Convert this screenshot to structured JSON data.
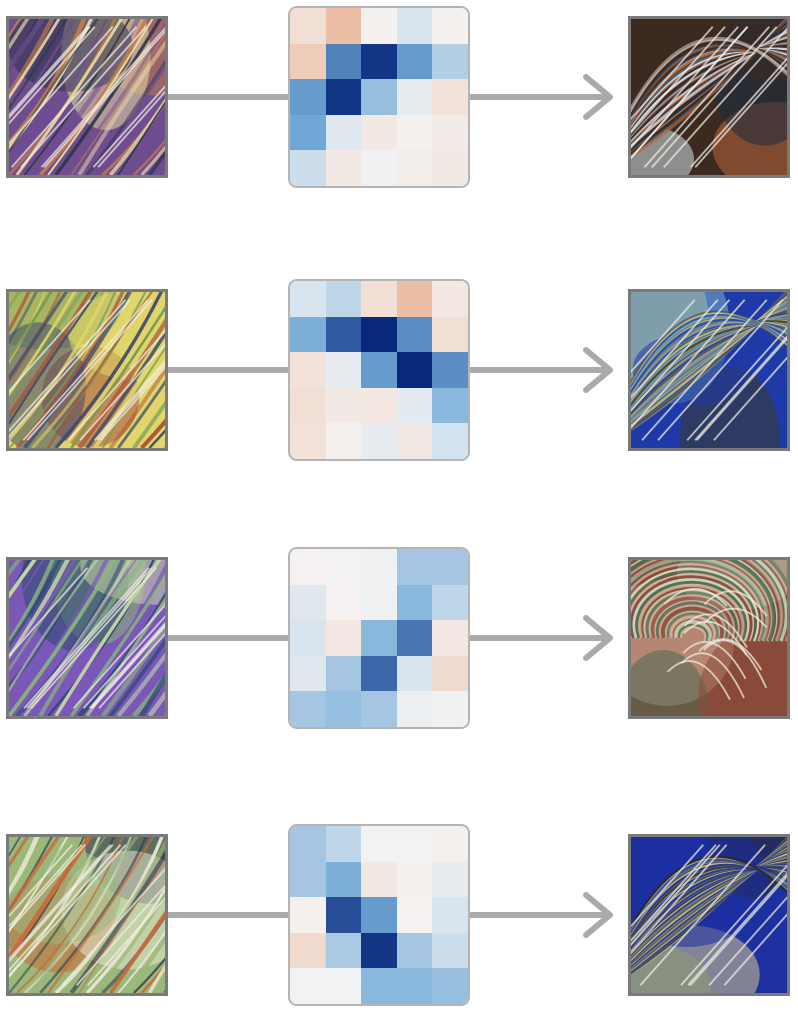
{
  "colors": {
    "connector": "#aaaaaa",
    "tile_border": "#7a7a7a",
    "kernel_border": "#b4b4b4",
    "neg_max": "#e89a72",
    "neutral": "#f4f4f4",
    "pos_max": "#08287c"
  },
  "rows": [
    {
      "input": {
        "palette": [
          "#6f4d8f",
          "#c07b4f",
          "#e6d9a6",
          "#2c3548"
        ],
        "style": "diagonal-streaks"
      },
      "kernel": [
        [
          -0.25,
          -0.6,
          -0.05,
          0.1,
          -0.05
        ],
        [
          -0.45,
          0.65,
          0.95,
          0.55,
          0.25
        ],
        [
          0.55,
          0.95,
          0.35,
          0.05,
          -0.2
        ],
        [
          0.5,
          0.08,
          -0.12,
          -0.05,
          -0.1
        ],
        [
          0.15,
          -0.12,
          0.02,
          -0.08,
          -0.12
        ]
      ],
      "output": {
        "palette": [
          "#3a2a20",
          "#b8643a",
          "#cfe2ea",
          "#1d2d44"
        ],
        "style": "arc"
      }
    },
    {
      "input": {
        "palette": [
          "#e0d66a",
          "#7a9a58",
          "#a8523c",
          "#3f4a6e"
        ],
        "style": "diagonal-streaks"
      },
      "kernel": [
        [
          0.1,
          0.2,
          -0.25,
          -0.6,
          -0.15
        ],
        [
          0.45,
          0.8,
          1.0,
          0.6,
          -0.25
        ],
        [
          -0.2,
          0.05,
          0.55,
          1.0,
          0.6
        ],
        [
          -0.25,
          -0.12,
          -0.15,
          0.06,
          0.4
        ],
        [
          -0.2,
          -0.05,
          0.05,
          -0.12,
          0.12
        ]
      ],
      "output": {
        "palette": [
          "#1e3aa8",
          "#d8c67a",
          "#3a3a2a",
          "#7ab0c4"
        ],
        "style": "arc"
      }
    },
    {
      "input": {
        "palette": [
          "#7a58b8",
          "#8ab87a",
          "#2a4a6e",
          "#c8d6a8"
        ],
        "style": "diagonal-streaks"
      },
      "kernel": [
        [
          -0.03,
          -0.02,
          0.02,
          0.3,
          0.3
        ],
        [
          0.08,
          -0.03,
          0.02,
          0.4,
          0.2
        ],
        [
          0.1,
          -0.15,
          0.4,
          0.7,
          -0.15
        ],
        [
          0.08,
          0.3,
          0.75,
          0.1,
          -0.3
        ],
        [
          0.3,
          0.35,
          0.3,
          0.03,
          0.02
        ]
      ],
      "output": {
        "palette": [
          "#8a4a3a",
          "#d9b8a0",
          "#4a6a50",
          "#c8dcc0"
        ],
        "style": "swirl"
      }
    },
    {
      "input": {
        "palette": [
          "#9ab87a",
          "#2c3048",
          "#c86a3a",
          "#e6e6d0"
        ],
        "style": "diagonal-streaks"
      },
      "kernel": [
        [
          0.3,
          0.2,
          0.01,
          0.01,
          -0.05
        ],
        [
          0.3,
          0.45,
          -0.12,
          -0.05,
          0.05
        ],
        [
          -0.05,
          0.85,
          0.55,
          -0.03,
          0.1
        ],
        [
          -0.3,
          0.28,
          0.95,
          0.3,
          0.15
        ],
        [
          0.01,
          0.01,
          0.4,
          0.4,
          0.35
        ]
      ],
      "output": {
        "palette": [
          "#1c30a0",
          "#d8c890",
          "#2a2a28",
          "#8a9a70"
        ],
        "style": "arc"
      }
    }
  ]
}
